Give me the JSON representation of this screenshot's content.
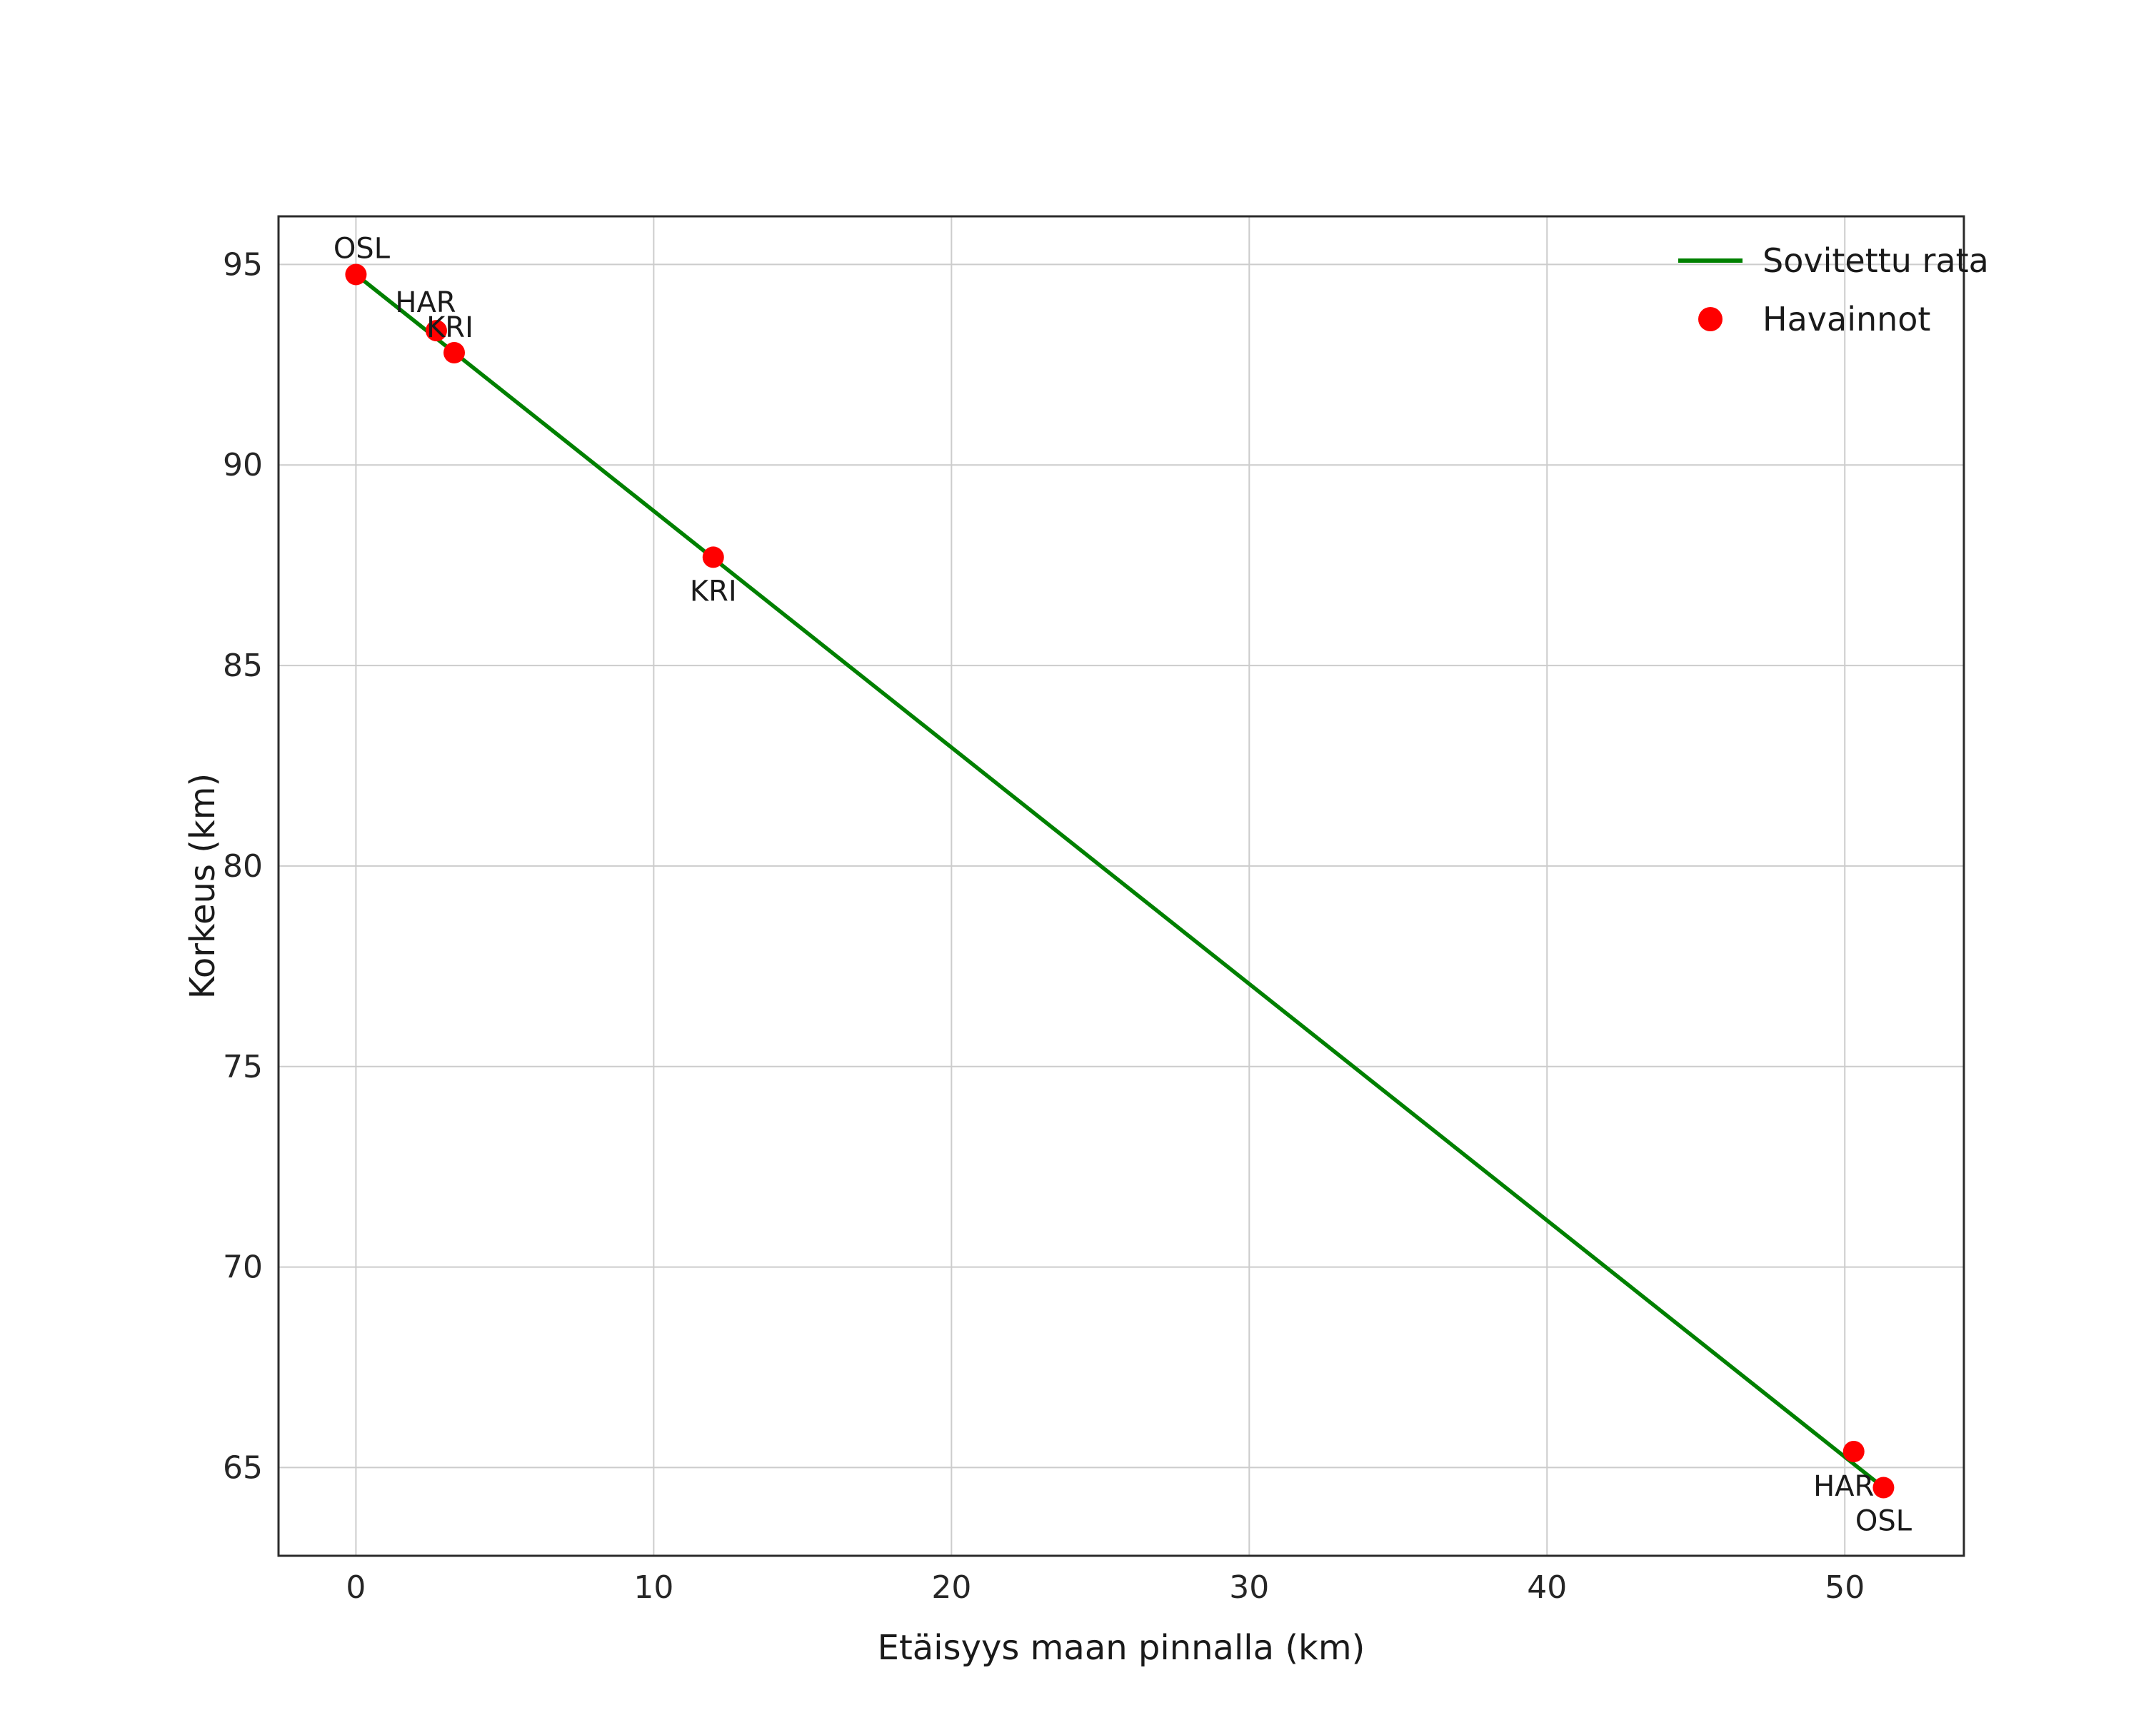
{
  "figure": {
    "background": "#ffffff"
  },
  "chart_data": {
    "type": "scatter",
    "title": "",
    "xlabel": "Etäisyys maan pinnalla (km)",
    "ylabel": "Korkeus (km)",
    "xlim": [
      -2.6,
      54.0
    ],
    "ylim": [
      62.8,
      96.2
    ],
    "xticks": [
      0,
      10,
      20,
      30,
      40,
      50
    ],
    "yticks": [
      65,
      70,
      75,
      80,
      85,
      90,
      95
    ],
    "grid": true,
    "legend_position": "upper right",
    "colors": {
      "line": "#008000",
      "points": "#ff0000",
      "grid": "#cccccc",
      "spine": "#2b2b2b",
      "text": "#1a1a1a"
    },
    "series": [
      {
        "name": "Sovitettu rata",
        "kind": "line",
        "color": "#008000",
        "x": [
          0.0,
          51.3
        ],
        "y": [
          94.75,
          64.5
        ]
      },
      {
        "name": "Havainnot",
        "kind": "scatter",
        "color": "#ff0000",
        "points": [
          {
            "label": "OSL",
            "x": 0.0,
            "y": 94.75,
            "dx": 8,
            "dy": -23,
            "anchor": "middle"
          },
          {
            "label": "HAR",
            "x": 2.7,
            "y": 93.35,
            "dx": -15,
            "dy": -26,
            "anchor": "middle"
          },
          {
            "label": "KRI",
            "x": 3.3,
            "y": 92.8,
            "dx": -6,
            "dy": -22,
            "anchor": "middle"
          },
          {
            "label": "KRI",
            "x": 12.0,
            "y": 87.7,
            "dx": 0,
            "dy": 61,
            "anchor": "middle"
          },
          {
            "label": "HAR",
            "x": 50.3,
            "y": 65.4,
            "dx": -14,
            "dy": 62,
            "anchor": "middle"
          },
          {
            "label": "OSL",
            "x": 51.3,
            "y": 64.5,
            "dx": 0,
            "dy": 60,
            "anchor": "middle"
          }
        ]
      }
    ]
  }
}
